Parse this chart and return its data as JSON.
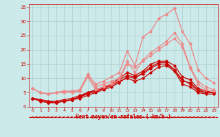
{
  "bg_color": "#cceaea",
  "grid_color": "#aacccc",
  "xlabel": "Vent moyen/en rafales ( km/h )",
  "xlabel_color": "#cc0000",
  "tick_color": "#cc0000",
  "xlim": [
    -0.5,
    23.5
  ],
  "ylim": [
    0,
    36
  ],
  "yticks": [
    0,
    5,
    10,
    15,
    20,
    25,
    30,
    35
  ],
  "xticks": [
    0,
    1,
    2,
    3,
    4,
    5,
    6,
    7,
    8,
    9,
    10,
    11,
    12,
    13,
    14,
    15,
    16,
    17,
    18,
    19,
    20,
    21,
    22,
    23
  ],
  "lines": [
    {
      "x": [
        0,
        1,
        2,
        3,
        4,
        5,
        6,
        7,
        8,
        9,
        10,
        11,
        12,
        13,
        14,
        15,
        16,
        17,
        18,
        19,
        20,
        21,
        22,
        23
      ],
      "y": [
        3.0,
        2.5,
        2.0,
        1.5,
        2.0,
        2.5,
        3.5,
        4.5,
        5.5,
        6.5,
        8.0,
        10.0,
        12.0,
        11.0,
        12.5,
        15.0,
        16.0,
        16.0,
        14.5,
        10.5,
        9.5,
        6.5,
        5.5,
        5.0
      ],
      "color": "#cc0000",
      "lw": 0.9,
      "marker": "D",
      "ms": 1.8
    },
    {
      "x": [
        0,
        1,
        2,
        3,
        4,
        5,
        6,
        7,
        8,
        9,
        10,
        11,
        12,
        13,
        14,
        15,
        16,
        17,
        18,
        19,
        20,
        21,
        22,
        23
      ],
      "y": [
        3.0,
        2.0,
        1.5,
        1.5,
        2.0,
        2.5,
        3.0,
        4.0,
        5.0,
        6.0,
        7.0,
        8.5,
        10.5,
        10.0,
        12.0,
        14.0,
        15.5,
        15.5,
        13.0,
        9.0,
        8.5,
        6.0,
        5.0,
        5.0
      ],
      "color": "#cc0000",
      "lw": 0.9,
      "marker": "D",
      "ms": 1.8
    },
    {
      "x": [
        0,
        1,
        2,
        3,
        4,
        5,
        6,
        7,
        8,
        9,
        10,
        11,
        12,
        13,
        14,
        15,
        16,
        17,
        18,
        19,
        20,
        21,
        22,
        23
      ],
      "y": [
        3.0,
        2.0,
        1.5,
        1.5,
        2.0,
        2.5,
        3.5,
        5.0,
        6.0,
        7.0,
        8.0,
        9.5,
        11.0,
        10.5,
        11.5,
        13.5,
        15.0,
        15.0,
        13.0,
        9.5,
        8.0,
        5.5,
        5.0,
        5.0
      ],
      "color": "#cc0000",
      "lw": 0.9,
      "marker": "D",
      "ms": 1.8
    },
    {
      "x": [
        0,
        1,
        2,
        3,
        4,
        5,
        6,
        7,
        8,
        9,
        10,
        11,
        12,
        13,
        14,
        15,
        16,
        17,
        18,
        19,
        20,
        21,
        22,
        23
      ],
      "y": [
        3.0,
        2.5,
        2.0,
        2.0,
        2.5,
        3.0,
        4.0,
        5.0,
        5.5,
        6.5,
        7.5,
        9.0,
        10.0,
        9.0,
        10.0,
        12.0,
        14.0,
        14.5,
        12.5,
        8.0,
        7.0,
        5.0,
        4.5,
        4.5
      ],
      "color": "#cc0000",
      "lw": 0.9,
      "marker": "D",
      "ms": 1.8
    },
    {
      "x": [
        0,
        1,
        2,
        3,
        4,
        5,
        6,
        7,
        8,
        9,
        10,
        11,
        12,
        13,
        14,
        15,
        16,
        17,
        18,
        19,
        20,
        21,
        22,
        23
      ],
      "y": [
        6.5,
        5.0,
        4.5,
        5.0,
        5.5,
        5.0,
        5.5,
        10.5,
        6.0,
        7.0,
        8.0,
        9.5,
        15.0,
        14.0,
        16.0,
        18.0,
        20.0,
        22.0,
        24.0,
        21.0,
        13.5,
        8.0,
        6.0,
        5.5
      ],
      "color": "#ee8888",
      "lw": 0.9,
      "marker": "D",
      "ms": 1.8
    },
    {
      "x": [
        0,
        1,
        2,
        3,
        4,
        5,
        6,
        7,
        8,
        9,
        10,
        11,
        12,
        13,
        14,
        15,
        16,
        17,
        18,
        19,
        20,
        21,
        22,
        23
      ],
      "y": [
        6.5,
        5.0,
        4.5,
        5.0,
        5.0,
        5.5,
        5.5,
        11.0,
        7.0,
        8.0,
        9.0,
        10.0,
        16.0,
        12.0,
        16.5,
        19.0,
        21.0,
        23.0,
        26.0,
        22.0,
        14.0,
        9.0,
        7.0,
        6.0
      ],
      "color": "#ee8888",
      "lw": 0.9,
      "marker": "D",
      "ms": 1.8
    },
    {
      "x": [
        0,
        1,
        2,
        3,
        4,
        5,
        6,
        7,
        8,
        9,
        10,
        11,
        12,
        13,
        14,
        15,
        16,
        17,
        18,
        19,
        20,
        21,
        22,
        23
      ],
      "y": [
        6.5,
        5.0,
        4.5,
        5.0,
        5.5,
        5.5,
        6.0,
        11.5,
        8.0,
        9.0,
        10.5,
        12.0,
        19.5,
        14.5,
        24.5,
        26.5,
        31.0,
        32.5,
        34.5,
        26.5,
        22.0,
        13.0,
        10.0,
        8.5
      ],
      "color": "#ee8888",
      "lw": 1.0,
      "marker": "D",
      "ms": 1.8
    }
  ]
}
